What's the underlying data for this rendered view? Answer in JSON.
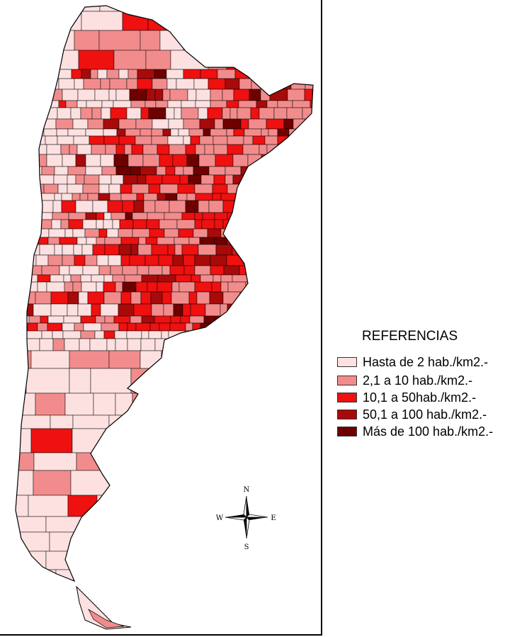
{
  "legend": {
    "title": "REFERENCIAS",
    "items": [
      {
        "label": "Hasta de 2 hab./km2.-",
        "color": "#fde1e1"
      },
      {
        "label": "2,1 a 10 hab./km2.-",
        "color": "#f28c8c"
      },
      {
        "label": "10,1 a 50hab./km2.-",
        "color": "#ef1010"
      },
      {
        "label": "50,1 a 100 hab./km2.-",
        "color": "#a80a0a"
      },
      {
        "label": "Más de 100 hab./km2.-",
        "color": "#6e0000"
      }
    ]
  },
  "compass": {
    "north": "N",
    "south": "S",
    "east": "E",
    "west": "W"
  },
  "colors": {
    "border": "#000000",
    "background": "#ffffff"
  }
}
